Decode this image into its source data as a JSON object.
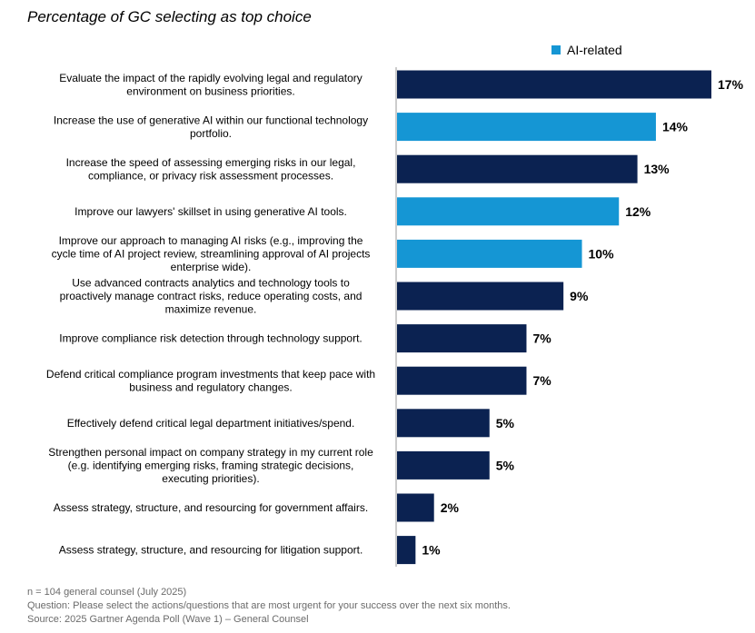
{
  "chart_data": {
    "type": "bar",
    "orientation": "horizontal",
    "title": "Percentage of GC selecting as top choice",
    "legend": [
      {
        "label": "AI-related",
        "color": "#1596d4"
      }
    ],
    "legend_position": "top-right",
    "value_suffix": "%",
    "xlim": [
      0,
      17
    ],
    "grid": false,
    "colors": {
      "default": "#0b2251",
      "ai": "#1596d4"
    },
    "categories": [
      [
        "Evaluate the impact of the rapidly evolving legal and regulatory",
        "environment on business priorities."
      ],
      [
        "Increase the use of generative AI within our functional technology",
        "portfolio."
      ],
      [
        "Increase the speed of assessing emerging risks in our legal,",
        "compliance, or privacy risk assessment processes."
      ],
      [
        "Improve our lawyers' skillset in using generative AI tools."
      ],
      [
        "Improve our approach to managing AI risks (e.g., improving the",
        "cycle time of AI project review, streamlining approval of AI projects",
        "enterprise wide)."
      ],
      [
        "Use advanced contracts analytics and technology tools to",
        "proactively manage contract risks, reduce operating costs, and",
        "maximize revenue."
      ],
      [
        "Improve compliance risk detection through technology support."
      ],
      [
        "Defend critical compliance program investments that keep pace with",
        "business and regulatory changes."
      ],
      [
        "Effectively defend critical legal department initiatives/spend."
      ],
      [
        "Strengthen personal impact on company strategy in my current role",
        "(e.g. identifying emerging risks, framing strategic decisions,",
        "executing priorities)."
      ],
      [
        "Assess strategy, structure, and resourcing for government affairs."
      ],
      [
        "Assess strategy, structure, and resourcing for litigation support."
      ]
    ],
    "values": [
      17,
      14,
      13,
      12,
      10,
      9,
      7,
      7,
      5,
      5,
      2,
      1
    ],
    "ai_related": [
      false,
      true,
      false,
      true,
      true,
      false,
      false,
      false,
      false,
      false,
      false,
      false
    ]
  },
  "footnotes": {
    "sample": "n = 104 general counsel (July 2025)",
    "question": "Question: Please select the actions/questions that are most urgent for your success over the next six months.",
    "source": "Source: 2025 Gartner Agenda Poll (Wave 1) – General Counsel"
  }
}
